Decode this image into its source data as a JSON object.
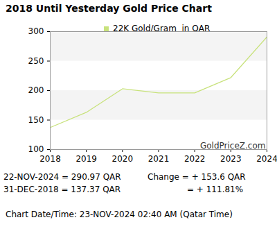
{
  "chart_data": {
    "type": "line",
    "title": "2018 Until Yesterday Gold Price Chart",
    "x": [
      2018,
      2019,
      2020,
      2021,
      2022,
      2023,
      2024
    ],
    "series": [
      {
        "name": "22K Gold/Gram  in QAR",
        "color": "#c8e27c",
        "values": [
          137.37,
          163,
          203,
          196,
          196,
          222,
          290.97
        ]
      }
    ],
    "xlim": [
      2018,
      2024
    ],
    "xticks": [
      2018,
      2019,
      2020,
      2021,
      2022,
      2023,
      2024
    ],
    "ylim": [
      100,
      300
    ],
    "yticks": [
      100,
      150,
      200,
      250,
      300
    ],
    "grid": true,
    "legend": "top",
    "annotations": [
      "GoldPriceZ.com",
      "22-NOV-2024 = 290.97 QAR",
      "31-DEC-2018 = 137.37 QAR",
      "Change = + 153.6 QAR",
      "= + 111.81%",
      "Chart Date/Time: 23-NOV-2024 02:40 AM (Qatar Time)"
    ]
  }
}
